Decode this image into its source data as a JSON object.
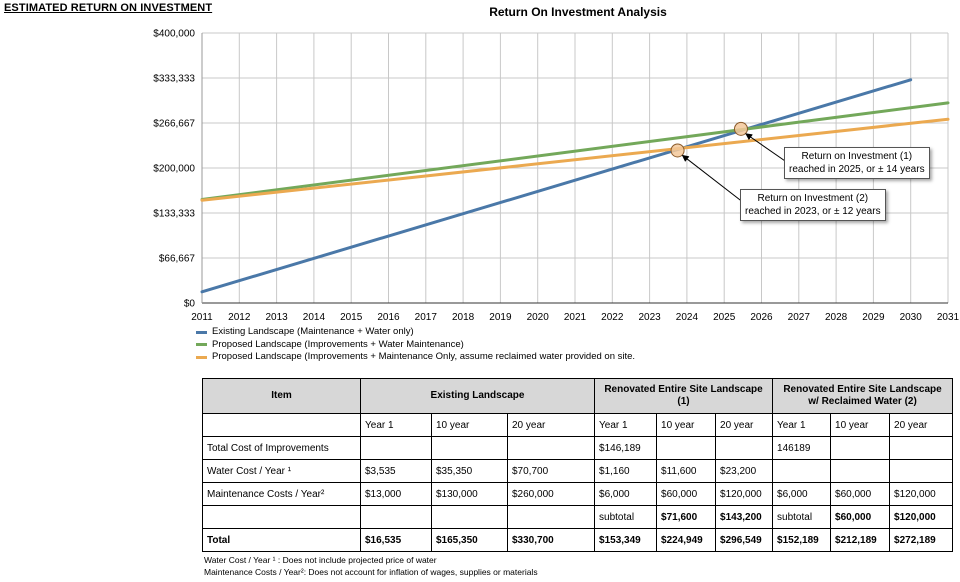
{
  "page_title": "ESTIMATED RETURN ON INVESTMENT",
  "colors": {
    "existing": "#4a78a8",
    "proposed": "#73a85a",
    "reclaimed": "#eba950",
    "grid": "#c8c8c8",
    "marker_fill": "#f3c89a",
    "marker_stroke": "#8a5a2a"
  },
  "chart_data": {
    "type": "line",
    "title": "Return On Investment Analysis",
    "xlabel": "",
    "ylabel": "",
    "x": [
      2011,
      2012,
      2013,
      2014,
      2015,
      2016,
      2017,
      2018,
      2019,
      2020,
      2021,
      2022,
      2023,
      2024,
      2025,
      2026,
      2027,
      2028,
      2029,
      2030,
      2031
    ],
    "xlim": [
      2011,
      2031
    ],
    "ylim": [
      0,
      400000
    ],
    "y_ticks": [
      0,
      66667,
      133333,
      200000,
      266667,
      333333,
      400000
    ],
    "y_tick_labels": [
      "$0",
      "$66,667",
      "$133,333",
      "$200,000",
      "$266,667",
      "$333,333",
      "$400,000"
    ],
    "grid": true,
    "legend_position": "bottom-left",
    "series": [
      {
        "name": "Existing Landscape (Maintenance + Water only)",
        "color_key": "existing",
        "x": [
          2011,
          2030
        ],
        "values": [
          16535,
          330700
        ]
      },
      {
        "name": "Proposed Landscape (Improvements + Water Maintenance)",
        "color_key": "proposed",
        "x": [
          2011,
          2031
        ],
        "values": [
          153349,
          296549
        ]
      },
      {
        "name": "Proposed Landscape (Improvements + Maintenance Only, assume reclaimed water provided on site.",
        "color_key": "reclaimed",
        "x": [
          2011,
          2031
        ],
        "values": [
          152189,
          272189
        ]
      }
    ],
    "markers": [
      {
        "x": 2025.45,
        "y": 258000
      },
      {
        "x": 2023.75,
        "y": 226000
      }
    ],
    "annotations": [
      {
        "line1": "Return on Investment (1)",
        "line2": "reached in 2025, or ± 14 years"
      },
      {
        "line1": "Return on Investment (2)",
        "line2": "reached in 2023, or ± 12 years"
      }
    ]
  },
  "table": {
    "headers": {
      "item": "Item",
      "existing": "Existing Landscape",
      "renovated": "Renovated Entire Site Landscape (1)",
      "reclaimed": "Renovated Entire Site Landscape w/ Reclaimed Water (2)"
    },
    "subheaders": [
      "",
      "Year 1",
      "10 year",
      "20 year",
      "Year 1",
      "10 year",
      "20 year",
      "Year 1",
      "10 year",
      "20 year"
    ],
    "rows": [
      [
        "Total Cost of Improvements",
        "",
        "",
        "",
        "$146,189",
        "",
        "",
        "146189",
        "",
        ""
      ],
      [
        "Water Cost / Year ¹",
        "$3,535",
        "$35,350",
        "$70,700",
        "$1,160",
        "$11,600",
        "$23,200",
        "",
        "",
        ""
      ],
      [
        "Maintenance Costs / Year²",
        "$13,000",
        "$130,000",
        "$260,000",
        "$6,000",
        "$60,000",
        "$120,000",
        "$6,000",
        "$60,000",
        "$120,000"
      ],
      [
        "",
        "",
        "",
        "",
        "subtotal",
        "$71,600",
        "$143,200",
        "subtotal",
        "$60,000",
        "$120,000"
      ],
      [
        "Total",
        "$16,535",
        "$165,350",
        "$330,700",
        "$153,349",
        "$224,949",
        "$296,549",
        "$152,189",
        "$212,189",
        "$272,189"
      ]
    ]
  },
  "notes": [
    "Water Cost / Year ¹ : Does not include projected price of water",
    "Maintenance Costs / Year²:  Does not account for inflation of wages, supplies or materials"
  ]
}
